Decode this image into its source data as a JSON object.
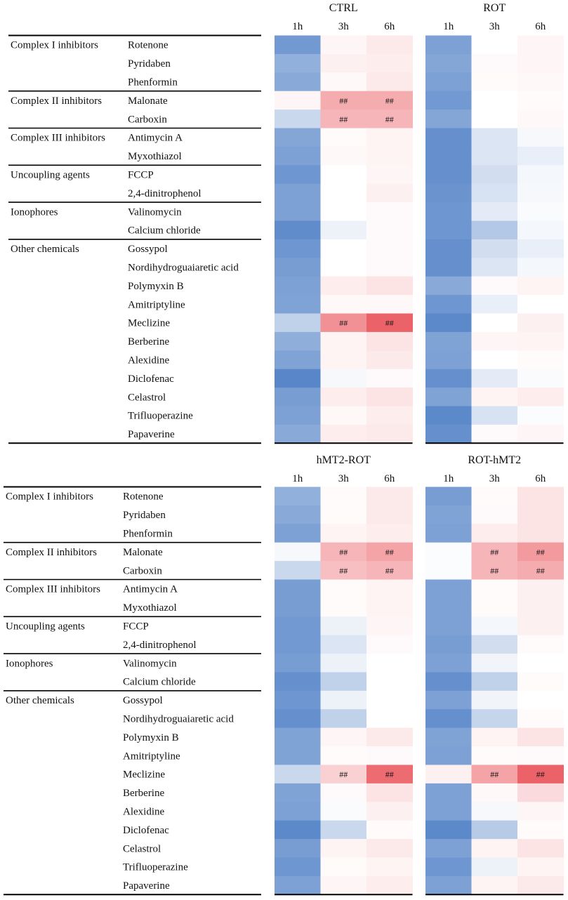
{
  "chart_data": {
    "type": "heatmap",
    "compounds": [
      {
        "group": "Complex I inhibitors",
        "name": "Rotenone"
      },
      {
        "group": "Complex I inhibitors",
        "name": "Pyridaben"
      },
      {
        "group": "Complex I inhibitors",
        "name": "Phenformin"
      },
      {
        "group": "Complex II inhibitors",
        "name": "Malonate"
      },
      {
        "group": "Complex II inhibitors",
        "name": "Carboxin"
      },
      {
        "group": "Complex III inhibitors",
        "name": "Antimycin A"
      },
      {
        "group": "Complex III inhibitors",
        "name": "Myxothiazol"
      },
      {
        "group": "Uncoupling agents",
        "name": "FCCP"
      },
      {
        "group": "Uncoupling agents",
        "name": "2,4-dinitrophenol"
      },
      {
        "group": "Ionophores",
        "name": "Valinomycin"
      },
      {
        "group": "Ionophores",
        "name": "Calcium chloride"
      },
      {
        "group": "Other chemicals",
        "name": "Gossypol"
      },
      {
        "group": "Other chemicals",
        "name": "Nordihydroguaiaretic acid"
      },
      {
        "group": "Other chemicals",
        "name": "Polymyxin B"
      },
      {
        "group": "Other chemicals",
        "name": "Amitriptyline"
      },
      {
        "group": "Other chemicals",
        "name": "Meclizine"
      },
      {
        "group": "Other chemicals",
        "name": "Berberine"
      },
      {
        "group": "Other chemicals",
        "name": "Alexidine"
      },
      {
        "group": "Other chemicals",
        "name": "Diclofenac"
      },
      {
        "group": "Other chemicals",
        "name": "Celastrol"
      },
      {
        "group": "Other chemicals",
        "name": "Trifluoperazine"
      },
      {
        "group": "Other chemicals",
        "name": "Papaverine"
      }
    ],
    "time_points": [
      "1h",
      "3h",
      "6h"
    ],
    "significance_mark": "##",
    "value_scale": "relative change: negative = blue, positive = red, range -1 to 1 (estimated from colour)",
    "panels": [
      {
        "title": "CTRL",
        "values": [
          [
            -0.78,
            0.05,
            0.12
          ],
          [
            -0.6,
            0.08,
            0.1
          ],
          [
            -0.65,
            0.04,
            0.12
          ],
          [
            0.05,
            0.45,
            0.45
          ],
          [
            -0.3,
            0.4,
            0.4
          ],
          [
            -0.68,
            0.02,
            0.06
          ],
          [
            -0.72,
            0.04,
            0.06
          ],
          [
            -0.8,
            0.0,
            0.05
          ],
          [
            -0.72,
            0.0,
            0.08
          ],
          [
            -0.72,
            0.0,
            0.03
          ],
          [
            -0.88,
            -0.1,
            0.03
          ],
          [
            -0.8,
            0.0,
            0.03
          ],
          [
            -0.75,
            0.0,
            0.03
          ],
          [
            -0.72,
            0.1,
            0.15
          ],
          [
            -0.7,
            0.04,
            0.04
          ],
          [
            -0.35,
            0.6,
            0.85
          ],
          [
            -0.62,
            0.06,
            0.15
          ],
          [
            -0.7,
            0.06,
            0.12
          ],
          [
            -0.92,
            -0.05,
            0.03
          ],
          [
            -0.75,
            0.1,
            0.15
          ],
          [
            -0.72,
            0.04,
            0.1
          ],
          [
            -0.65,
            0.1,
            0.12
          ]
        ],
        "significant": [
          [
            false,
            false,
            false
          ],
          [
            false,
            false,
            false
          ],
          [
            false,
            false,
            false
          ],
          [
            false,
            true,
            true
          ],
          [
            false,
            true,
            true
          ],
          [
            false,
            false,
            false
          ],
          [
            false,
            false,
            false
          ],
          [
            false,
            false,
            false
          ],
          [
            false,
            false,
            false
          ],
          [
            false,
            false,
            false
          ],
          [
            false,
            false,
            false
          ],
          [
            false,
            false,
            false
          ],
          [
            false,
            false,
            false
          ],
          [
            false,
            false,
            false
          ],
          [
            false,
            false,
            false
          ],
          [
            false,
            true,
            true
          ],
          [
            false,
            false,
            false
          ],
          [
            false,
            false,
            false
          ],
          [
            false,
            false,
            false
          ],
          [
            false,
            false,
            false
          ],
          [
            false,
            false,
            false
          ],
          [
            false,
            false,
            false
          ]
        ]
      },
      {
        "title": "ROT",
        "values": [
          [
            -0.72,
            0.0,
            0.05
          ],
          [
            -0.68,
            0.03,
            0.05
          ],
          [
            -0.72,
            0.02,
            0.04
          ],
          [
            -0.78,
            0.0,
            0.02
          ],
          [
            -0.68,
            0.0,
            0.04
          ],
          [
            -0.85,
            -0.2,
            -0.05
          ],
          [
            -0.85,
            -0.2,
            -0.12
          ],
          [
            -0.85,
            -0.25,
            -0.06
          ],
          [
            -0.82,
            -0.22,
            -0.05
          ],
          [
            -0.8,
            -0.15,
            -0.03
          ],
          [
            -0.8,
            -0.42,
            -0.06
          ],
          [
            -0.85,
            -0.25,
            -0.12
          ],
          [
            -0.85,
            -0.2,
            -0.06
          ],
          [
            -0.65,
            0.03,
            0.06
          ],
          [
            -0.8,
            -0.12,
            0.0
          ],
          [
            -0.9,
            0.0,
            0.08
          ],
          [
            -0.7,
            0.05,
            0.06
          ],
          [
            -0.72,
            0.0,
            0.02
          ],
          [
            -0.85,
            -0.15,
            -0.03
          ],
          [
            -0.7,
            0.06,
            0.1
          ],
          [
            -0.9,
            -0.22,
            -0.02
          ],
          [
            -0.85,
            0.03,
            0.05
          ]
        ],
        "significant": [
          [
            false,
            false,
            false
          ],
          [
            false,
            false,
            false
          ],
          [
            false,
            false,
            false
          ],
          [
            false,
            false,
            false
          ],
          [
            false,
            false,
            false
          ],
          [
            false,
            false,
            false
          ],
          [
            false,
            false,
            false
          ],
          [
            false,
            false,
            false
          ],
          [
            false,
            false,
            false
          ],
          [
            false,
            false,
            false
          ],
          [
            false,
            false,
            false
          ],
          [
            false,
            false,
            false
          ],
          [
            false,
            false,
            false
          ],
          [
            false,
            false,
            false
          ],
          [
            false,
            false,
            false
          ],
          [
            false,
            false,
            false
          ],
          [
            false,
            false,
            false
          ],
          [
            false,
            false,
            false
          ],
          [
            false,
            false,
            false
          ],
          [
            false,
            false,
            false
          ],
          [
            false,
            false,
            false
          ],
          [
            false,
            false,
            false
          ]
        ]
      },
      {
        "title": "hMT2-ROT",
        "values": [
          [
            -0.6,
            0.02,
            0.12
          ],
          [
            -0.65,
            0.02,
            0.12
          ],
          [
            -0.72,
            0.06,
            0.1
          ],
          [
            -0.05,
            0.4,
            0.5
          ],
          [
            -0.3,
            0.35,
            0.4
          ],
          [
            -0.75,
            0.02,
            0.06
          ],
          [
            -0.75,
            0.02,
            0.06
          ],
          [
            -0.78,
            -0.1,
            0.05
          ],
          [
            -0.78,
            -0.2,
            0.03
          ],
          [
            -0.75,
            -0.1,
            0.0
          ],
          [
            -0.85,
            -0.35,
            0.0
          ],
          [
            -0.8,
            -0.1,
            0.0
          ],
          [
            -0.85,
            -0.35,
            0.0
          ],
          [
            -0.7,
            0.05,
            0.12
          ],
          [
            -0.7,
            0.02,
            0.03
          ],
          [
            -0.3,
            0.25,
            0.8
          ],
          [
            -0.7,
            0.03,
            0.15
          ],
          [
            -0.72,
            -0.03,
            0.08
          ],
          [
            -0.9,
            -0.3,
            0.02
          ],
          [
            -0.75,
            0.06,
            0.12
          ],
          [
            -0.8,
            0.02,
            0.06
          ],
          [
            -0.72,
            0.05,
            0.1
          ]
        ],
        "significant": [
          [
            false,
            false,
            false
          ],
          [
            false,
            false,
            false
          ],
          [
            false,
            false,
            false
          ],
          [
            false,
            true,
            true
          ],
          [
            false,
            true,
            true
          ],
          [
            false,
            false,
            false
          ],
          [
            false,
            false,
            false
          ],
          [
            false,
            false,
            false
          ],
          [
            false,
            false,
            false
          ],
          [
            false,
            false,
            false
          ],
          [
            false,
            false,
            false
          ],
          [
            false,
            false,
            false
          ],
          [
            false,
            false,
            false
          ],
          [
            false,
            false,
            false
          ],
          [
            false,
            false,
            false
          ],
          [
            false,
            true,
            true
          ],
          [
            false,
            false,
            false
          ],
          [
            false,
            false,
            false
          ],
          [
            false,
            false,
            false
          ],
          [
            false,
            false,
            false
          ],
          [
            false,
            false,
            false
          ],
          [
            false,
            false,
            false
          ]
        ]
      },
      {
        "title": "ROT-hMT2",
        "values": [
          [
            -0.75,
            0.02,
            0.15
          ],
          [
            -0.7,
            0.03,
            0.15
          ],
          [
            -0.72,
            0.1,
            0.15
          ],
          [
            -0.02,
            0.4,
            0.55
          ],
          [
            -0.02,
            0.4,
            0.45
          ],
          [
            -0.72,
            0.02,
            0.08
          ],
          [
            -0.72,
            0.02,
            0.08
          ],
          [
            -0.72,
            -0.06,
            0.08
          ],
          [
            -0.75,
            -0.25,
            0.02
          ],
          [
            -0.72,
            -0.08,
            0.0
          ],
          [
            -0.85,
            -0.35,
            0.02
          ],
          [
            -0.72,
            -0.08,
            0.0
          ],
          [
            -0.85,
            -0.32,
            0.02
          ],
          [
            -0.7,
            0.06,
            0.15
          ],
          [
            -0.72,
            0.02,
            0.03
          ],
          [
            0.08,
            0.5,
            0.85
          ],
          [
            -0.72,
            0.04,
            0.2
          ],
          [
            -0.72,
            -0.05,
            0.05
          ],
          [
            -0.9,
            -0.4,
            0.02
          ],
          [
            -0.72,
            0.06,
            0.15
          ],
          [
            -0.8,
            -0.1,
            0.06
          ],
          [
            -0.72,
            0.06,
            0.12
          ]
        ],
        "significant": [
          [
            false,
            false,
            false
          ],
          [
            false,
            false,
            false
          ],
          [
            false,
            false,
            false
          ],
          [
            false,
            true,
            true
          ],
          [
            false,
            true,
            true
          ],
          [
            false,
            false,
            false
          ],
          [
            false,
            false,
            false
          ],
          [
            false,
            false,
            false
          ],
          [
            false,
            false,
            false
          ],
          [
            false,
            false,
            false
          ],
          [
            false,
            false,
            false
          ],
          [
            false,
            false,
            false
          ],
          [
            false,
            false,
            false
          ],
          [
            false,
            false,
            false
          ],
          [
            false,
            false,
            false
          ],
          [
            false,
            true,
            true
          ],
          [
            false,
            false,
            false
          ],
          [
            false,
            false,
            false
          ],
          [
            false,
            false,
            false
          ],
          [
            false,
            false,
            false
          ],
          [
            false,
            false,
            false
          ],
          [
            false,
            false,
            false
          ]
        ]
      }
    ],
    "colors": {
      "negative": "#4a7cc4",
      "neutral": "#ffffff",
      "positive": "#e8474e",
      "rule": "#000000"
    }
  }
}
